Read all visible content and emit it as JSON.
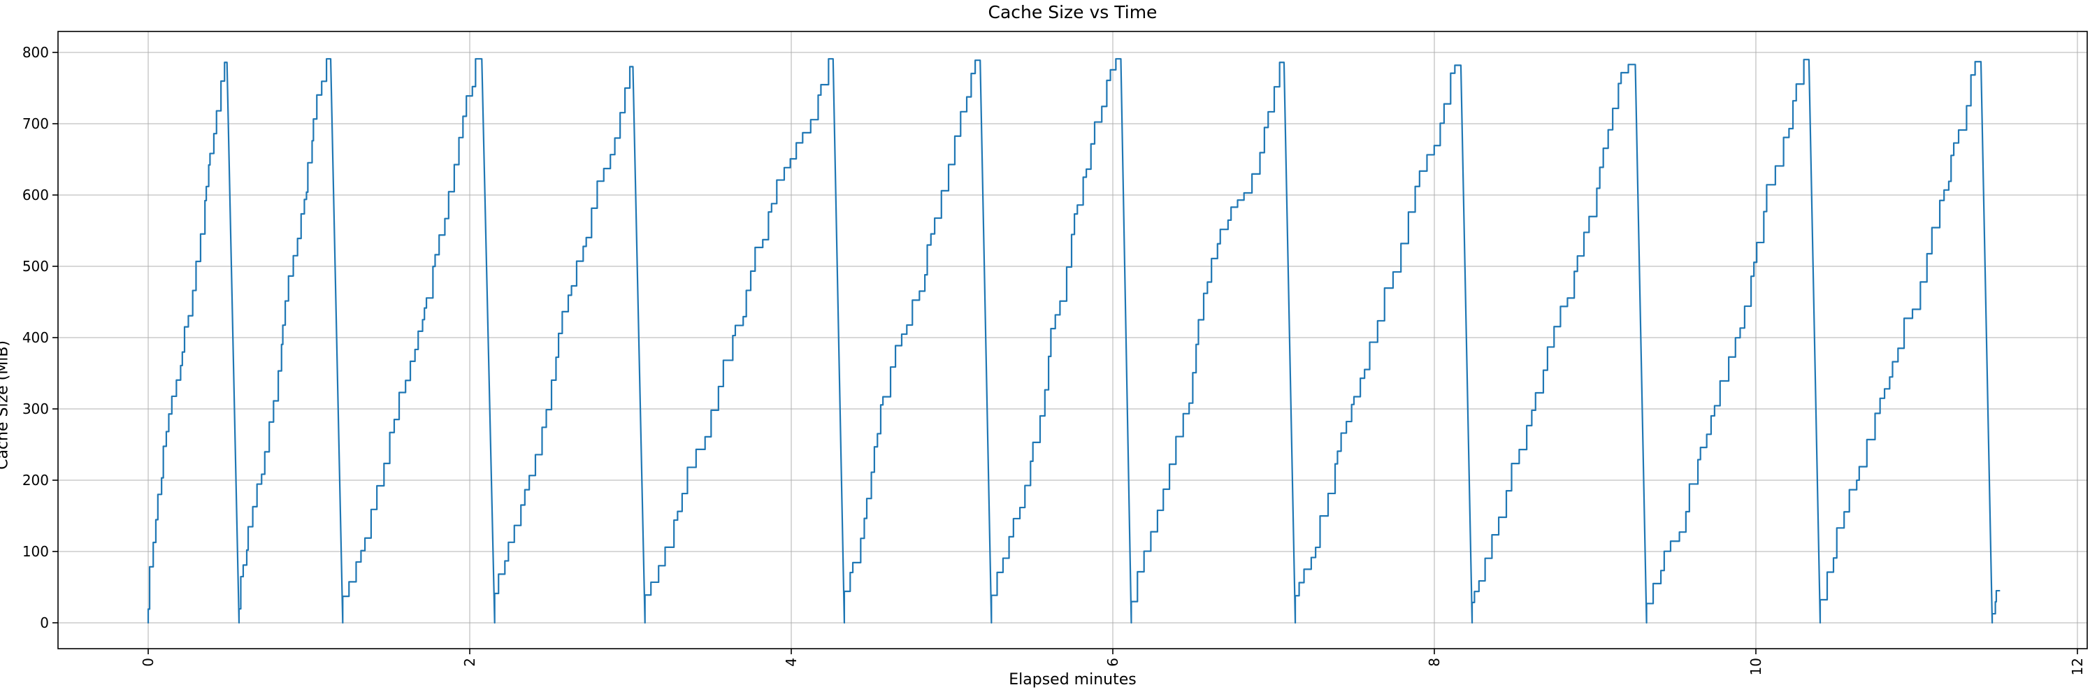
{
  "chart": {
    "title": "Cache Size vs Time",
    "xlabel": "Elapsed minutes",
    "ylabel": "Cache Size (MiB)"
  },
  "colors": {
    "line": "#1f77b4",
    "grid": "#b0b0b0",
    "spine": "#000000",
    "background": "#ffffff",
    "text": "#000000"
  },
  "chart_data": {
    "type": "line",
    "title": "Cache Size vs Time",
    "xlabel": "Elapsed minutes",
    "ylabel": "Cache Size (MiB)",
    "x_ticks": [
      0,
      2,
      4,
      6,
      8,
      10,
      12
    ],
    "x_tick_rotation": 90,
    "y_ticks": [
      0,
      100,
      200,
      300,
      400,
      500,
      600,
      700,
      800
    ],
    "xlim": [
      -0.561,
      12.061
    ],
    "ylim": [
      -36.3,
      829.4
    ],
    "grid": true,
    "legend": false,
    "line_color": "#1f77b4",
    "line_width": 2.2,
    "pattern": "repeating sawtooth: staircase rise from 0 MiB to ~790 MiB followed by a sharp drop back to 0 MiB",
    "random_seed": 7,
    "teeth": [
      {
        "start": 0.0,
        "peak_time": 0.49,
        "peak_value": 786,
        "drop_end": 0.565,
        "steps": 26
      },
      {
        "start": 0.565,
        "peak_time": 1.135,
        "peak_value": 791,
        "drop_end": 1.21,
        "steps": 27
      },
      {
        "start": 1.21,
        "peak_time": 2.075,
        "peak_value": 791,
        "drop_end": 2.155,
        "steps": 29
      },
      {
        "start": 2.155,
        "peak_time": 3.015,
        "peak_value": 780,
        "drop_end": 3.09,
        "steps": 28
      },
      {
        "start": 3.09,
        "peak_time": 4.26,
        "peak_value": 791,
        "drop_end": 4.33,
        "steps": 31
      },
      {
        "start": 4.33,
        "peak_time": 5.175,
        "peak_value": 789,
        "drop_end": 5.245,
        "steps": 28
      },
      {
        "start": 5.245,
        "peak_time": 6.05,
        "peak_value": 791,
        "drop_end": 6.115,
        "steps": 27
      },
      {
        "start": 6.115,
        "peak_time": 7.065,
        "peak_value": 786,
        "drop_end": 7.135,
        "steps": 28
      },
      {
        "start": 7.135,
        "peak_time": 8.165,
        "peak_value": 782,
        "drop_end": 8.235,
        "steps": 29
      },
      {
        "start": 8.235,
        "peak_time": 9.25,
        "peak_value": 783,
        "drop_end": 9.32,
        "steps": 29
      },
      {
        "start": 9.32,
        "peak_time": 10.33,
        "peak_value": 790,
        "drop_end": 10.4,
        "steps": 29
      },
      {
        "start": 10.4,
        "peak_time": 11.4,
        "peak_value": 787,
        "drop_end": 11.47,
        "steps": 29
      }
    ],
    "tail": {
      "start": 11.47,
      "end": 11.515,
      "end_value": 45,
      "steps": 3
    }
  }
}
